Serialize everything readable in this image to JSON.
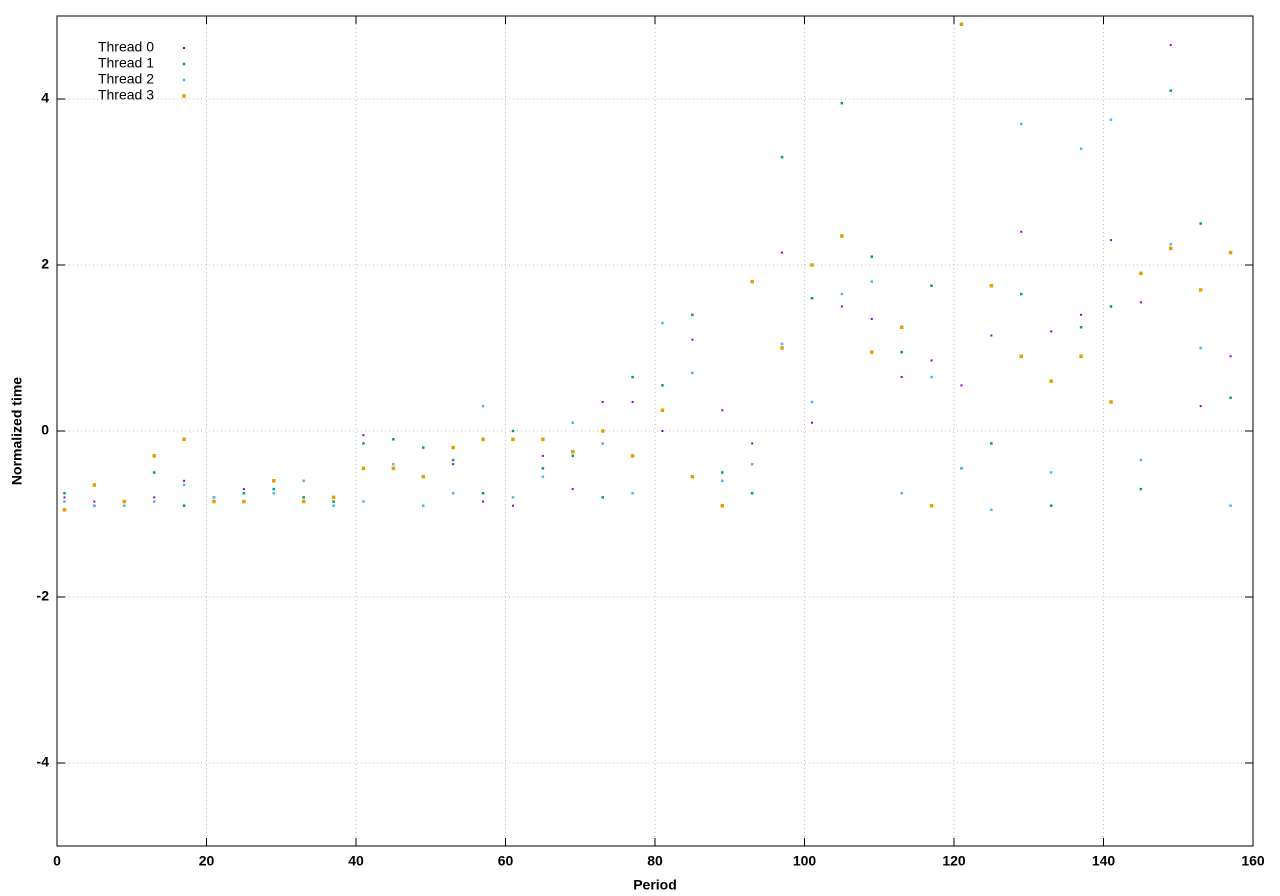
{
  "chart_data": {
    "type": "scatter",
    "x_label": "Period",
    "y_label": "Normalized time",
    "x": [
      1,
      5,
      9,
      13,
      17,
      21,
      25,
      29,
      33,
      37,
      41,
      45,
      49,
      53,
      57,
      61,
      65,
      69,
      73,
      77,
      81,
      85,
      89,
      93,
      97,
      101,
      105,
      109,
      113,
      117,
      121,
      125,
      129,
      133,
      137,
      141,
      145,
      149,
      153,
      157
    ],
    "series": [
      {
        "name": "Thread 0",
        "color": "#9400d3",
        "values": [
          -0.8,
          -0.85,
          -0.85,
          -0.8,
          -0.6,
          -0.85,
          -0.7,
          -0.75,
          -0.85,
          -0.8,
          -0.05,
          -0.4,
          -0.9,
          -0.4,
          -0.85,
          -0.9,
          -0.3,
          -0.7,
          0.35,
          0.35,
          0.0,
          1.1,
          0.25,
          -0.15,
          2.15,
          0.1,
          1.5,
          1.35,
          0.65,
          0.85,
          0.55,
          1.15,
          2.4,
          1.2,
          1.4,
          2.3,
          1.55,
          4.65,
          0.3,
          0.9
        ]
      },
      {
        "name": "Thread 1",
        "color": "#009e73",
        "values": [
          -0.75,
          -0.9,
          -0.85,
          -0.5,
          -0.9,
          -0.8,
          -0.75,
          -0.7,
          -0.8,
          -0.85,
          -0.15,
          -0.1,
          -0.2,
          -0.35,
          -0.75,
          0.0,
          -0.45,
          -0.3,
          -0.8,
          0.65,
          0.55,
          1.4,
          -0.5,
          -0.75,
          3.3,
          1.6,
          3.95,
          2.1,
          0.95,
          1.75,
          -0.45,
          -0.15,
          1.65,
          -0.9,
          1.25,
          1.5,
          -0.7,
          4.1,
          2.5,
          0.4
        ]
      },
      {
        "name": "Thread 2",
        "color": "#56b4e9",
        "values": [
          -0.85,
          -0.9,
          -0.9,
          -0.85,
          -0.65,
          -0.8,
          -0.85,
          -0.75,
          -0.6,
          -0.9,
          -0.85,
          -0.4,
          -0.9,
          -0.75,
          0.3,
          -0.8,
          -0.55,
          0.1,
          -0.15,
          -0.75,
          1.3,
          0.7,
          -0.6,
          -0.4,
          1.05,
          0.35,
          1.65,
          1.8,
          -0.75,
          0.65,
          -0.45,
          -0.95,
          3.7,
          -0.5,
          3.4,
          3.75,
          -0.35,
          2.25,
          1.0,
          -0.9
        ]
      },
      {
        "name": "Thread 3",
        "color": "#e69f00",
        "values": [
          -0.95,
          -0.65,
          -0.85,
          -0.3,
          -0.1,
          -0.85,
          -0.85,
          -0.6,
          -0.85,
          -0.8,
          -0.45,
          -0.45,
          -0.55,
          -0.2,
          -0.1,
          -0.1,
          -0.1,
          -0.25,
          0.0,
          -0.3,
          0.25,
          -0.55,
          -0.9,
          1.8,
          1.0,
          2.0,
          2.35,
          0.95,
          1.25,
          -0.9,
          4.9,
          1.75,
          0.9,
          0.6,
          0.9,
          0.35,
          1.9,
          2.2,
          1.7,
          2.15
        ]
      }
    ],
    "xlim": [
      0,
      160
    ],
    "xticks": [
      0,
      20,
      40,
      60,
      80,
      100,
      120,
      140,
      160
    ],
    "ylim": [
      -5,
      5
    ],
    "yticks": [
      -4,
      -2,
      0,
      2,
      4
    ],
    "grid": true,
    "legend": "top-left"
  }
}
